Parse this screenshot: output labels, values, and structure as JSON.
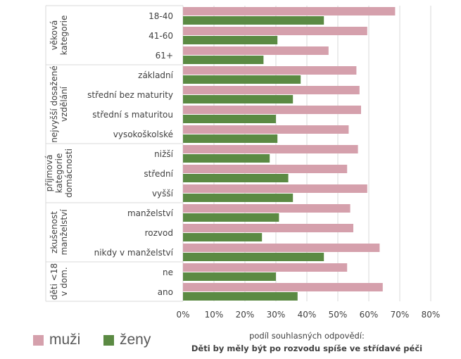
{
  "colors": {
    "muzi": "#d5a0ac",
    "zeny": "#5b8a43",
    "grid": "#d9d9d9",
    "text": "#404040"
  },
  "legend": {
    "muzi_label": "muži",
    "zeny_label": "ženy"
  },
  "axis": {
    "xtitle_line1": "podíl souhlasných odpovědí:",
    "xtitle_line2": "Děti by měly být po rozvodu spíše ve střídavé péči"
  },
  "chart_data": {
    "type": "bar",
    "orientation": "horizontal",
    "groups": [
      {
        "label": "věková kategorie",
        "label_lines": [
          "věková",
          "kategorie"
        ],
        "categories": [
          "18-40",
          "41-60",
          "61+"
        ]
      },
      {
        "label": "nejvyšší dosažené vzdělání",
        "label_lines": [
          "nejvyšší dosažené",
          "vzdělání"
        ],
        "categories": [
          "základní",
          "střední bez maturity",
          "střední s maturitou",
          "vysokoškolské"
        ]
      },
      {
        "label": "příjmová kategorie domácnosti",
        "label_lines": [
          "příjmová",
          "kategorie",
          "domácnosti"
        ],
        "categories": [
          "nižší",
          "střední",
          "vyšší"
        ]
      },
      {
        "label": "zkušenost manželství",
        "label_lines": [
          "zkušenost",
          "manželství"
        ],
        "categories": [
          "manželství",
          "rozvod",
          "nikdy v manželství"
        ]
      },
      {
        "label": "děti <18 v dom.",
        "label_lines": [
          "děti <18",
          "v dom."
        ],
        "categories": [
          "ne",
          "ano"
        ]
      }
    ],
    "series": [
      {
        "name": "muži",
        "values": [
          68.5,
          59.5,
          47,
          56,
          57,
          57.5,
          53.5,
          56.5,
          53,
          59.5,
          54,
          55,
          63.5,
          53,
          64.5
        ]
      },
      {
        "name": "ženy",
        "values": [
          45.5,
          30.5,
          26,
          38,
          35.5,
          30,
          30.5,
          28,
          34,
          35.5,
          31,
          25.5,
          45.5,
          30,
          37
        ]
      }
    ],
    "xlim": [
      0,
      80
    ],
    "xticks": [
      "0%",
      "10%",
      "20%",
      "30%",
      "40%",
      "50%",
      "60%",
      "70%",
      "80%"
    ],
    "grid": true,
    "legend_position": "bottom-left"
  }
}
